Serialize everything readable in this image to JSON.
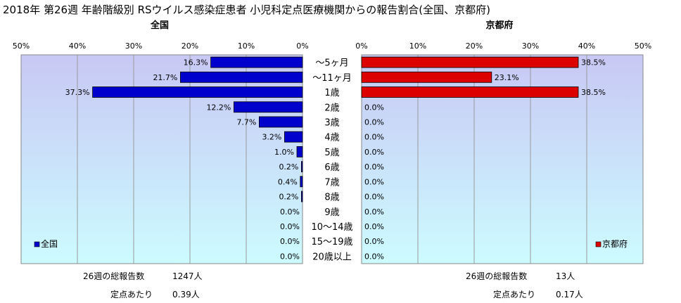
{
  "title": "2018年 第26週 年齢階級別 RSウイルス感染症患者 小児科定点医療機関からの報告割合(全国、京都府)",
  "chart_data": [
    {
      "type": "bar",
      "orientation": "horizontal",
      "direction": "right-to-left",
      "subtitle": "全国",
      "xlim": [
        0,
        50
      ],
      "ticks": [
        "50%",
        "40%",
        "30%",
        "20%",
        "10%",
        "0%"
      ],
      "categories": [
        "～5ヶ月",
        "～11ヶ月",
        "1歳",
        "2歳",
        "3歳",
        "4歳",
        "5歳",
        "6歳",
        "7歳",
        "8歳",
        "9歳",
        "10～14歳",
        "15～19歳",
        "20歳以上"
      ],
      "series": [
        {
          "name": "全国",
          "color": "#0000cc",
          "values": [
            16.3,
            21.7,
            37.3,
            12.2,
            7.7,
            3.2,
            1.0,
            0.2,
            0.4,
            0.2,
            0.0,
            0.0,
            0.0,
            0.0
          ],
          "labels": [
            "16.3%",
            "21.7%",
            "37.3%",
            "12.2%",
            "7.7%",
            "3.2%",
            "1.0%",
            "0.2%",
            "0.4%",
            "0.2%",
            "0.0%",
            "0.0%",
            "0.0%",
            "0.0%"
          ]
        }
      ],
      "legend": "bottom-left",
      "grid": true,
      "plot_background": "gradient lavender to light cyan"
    },
    {
      "type": "bar",
      "orientation": "horizontal",
      "direction": "left-to-right",
      "subtitle": "京都府",
      "xlim": [
        0,
        50
      ],
      "ticks": [
        "0%",
        "10%",
        "20%",
        "30%",
        "40%",
        "50%"
      ],
      "categories": [
        "～5ヶ月",
        "～11ヶ月",
        "1歳",
        "2歳",
        "3歳",
        "4歳",
        "5歳",
        "6歳",
        "7歳",
        "8歳",
        "9歳",
        "10～14歳",
        "15～19歳",
        "20歳以上"
      ],
      "series": [
        {
          "name": "京都府",
          "color": "#dd0000",
          "values": [
            38.5,
            23.1,
            38.5,
            0.0,
            0.0,
            0.0,
            0.0,
            0.0,
            0.0,
            0.0,
            0.0,
            0.0,
            0.0,
            0.0
          ],
          "labels": [
            "38.5%",
            "23.1%",
            "38.5%",
            "0.0%",
            "0.0%",
            "0.0%",
            "0.0%",
            "0.0%",
            "0.0%",
            "0.0%",
            "0.0%",
            "0.0%",
            "0.0%",
            "0.0%"
          ]
        }
      ],
      "legend": "bottom-right",
      "grid": true,
      "plot_background": "gradient lavender to light cyan"
    }
  ],
  "footer": {
    "national": {
      "total_label": "26週の総報告数",
      "total_value": "1247人",
      "per_label": "定点あたり",
      "per_value": "0.39人"
    },
    "kyoto": {
      "total_label": "26週の総報告数",
      "total_value": "13人",
      "per_label": "定点あたり",
      "per_value": "0.17人"
    }
  }
}
